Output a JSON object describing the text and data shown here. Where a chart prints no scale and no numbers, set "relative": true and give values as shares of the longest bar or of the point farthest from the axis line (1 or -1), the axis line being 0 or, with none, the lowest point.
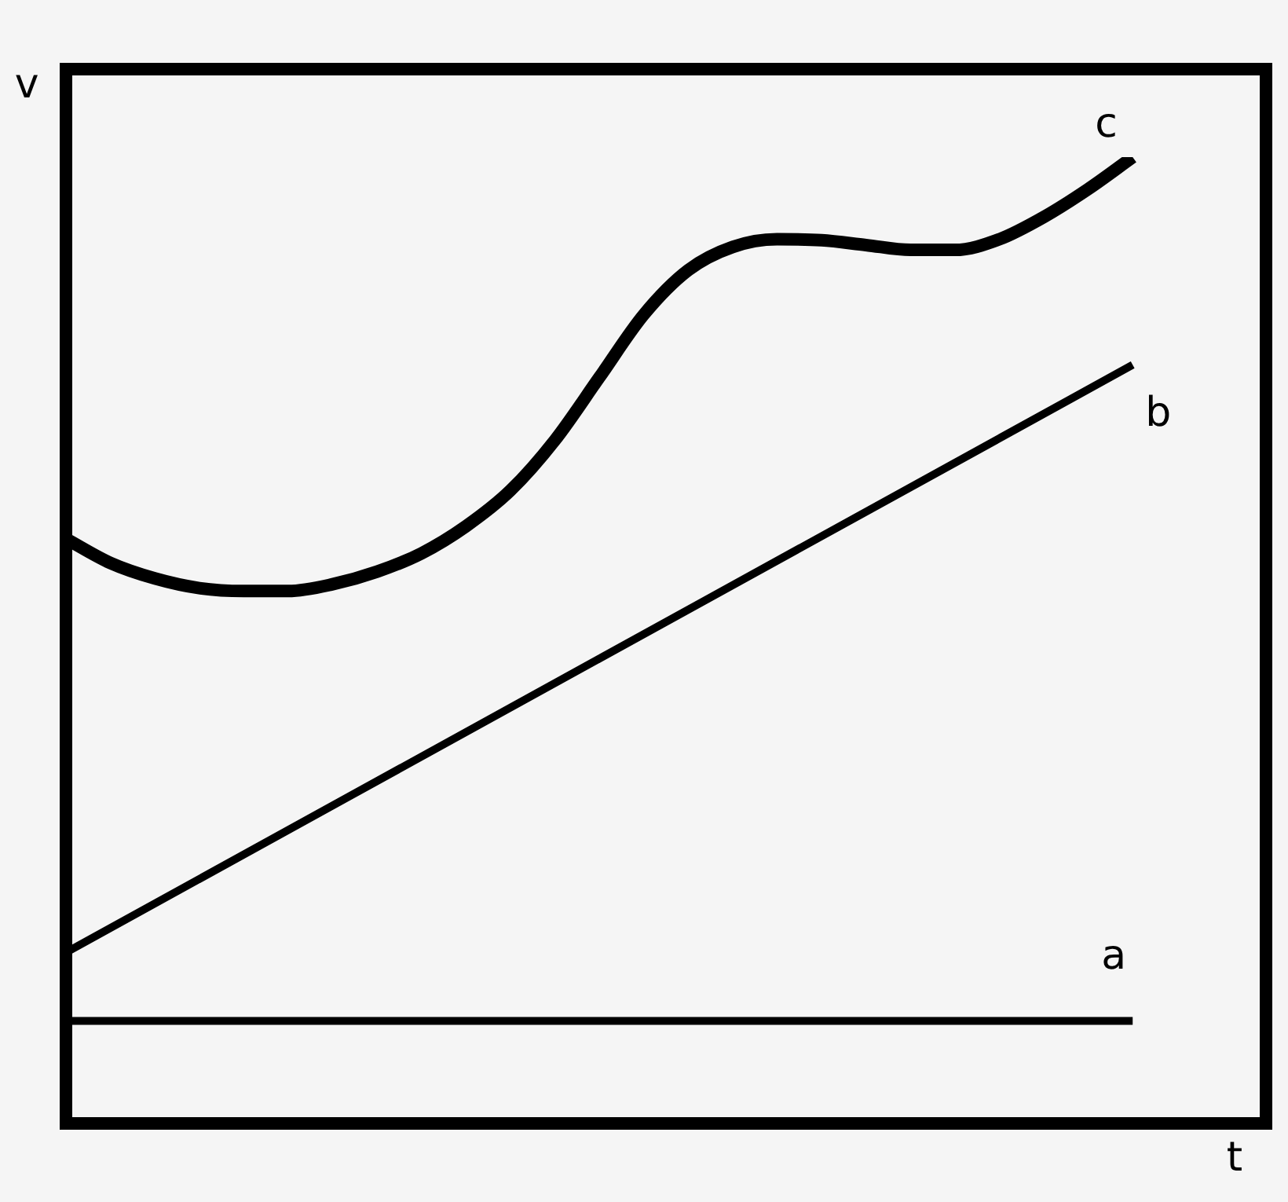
{
  "chart_data": {
    "type": "line",
    "relative": true,
    "xlabel": "t",
    "ylabel": "v",
    "legend": false,
    "marker": "none",
    "line_style": "solid",
    "categories": [
      null,
      null,
      null,
      null,
      null,
      null,
      null,
      null,
      null,
      null,
      null,
      null,
      null,
      null,
      null,
      null,
      null,
      null,
      null,
      null,
      null,
      null,
      null,
      null,
      null,
      null,
      null,
      null
    ],
    "series": [
      {
        "name": "a",
        "color": "#000000",
        "values": [
          0.106,
          null,
          null,
          null,
          null,
          null,
          null,
          null,
          null,
          null,
          null,
          null,
          null,
          null,
          null,
          null,
          null,
          null,
          null,
          null,
          null,
          null,
          null,
          null,
          0.106,
          null,
          null,
          null
        ]
      },
      {
        "name": "b",
        "color": "#000000",
        "values": [
          0.177,
          null,
          null,
          null,
          null,
          null,
          null,
          null,
          null,
          null,
          null,
          null,
          null,
          null,
          null,
          null,
          null,
          null,
          null,
          null,
          null,
          null,
          null,
          null,
          0.785,
          null,
          null,
          null
        ]
      },
      {
        "name": "c",
        "color": "#000000",
        "values": [
          0.605,
          0.58,
          0.564,
          0.554,
          0.551,
          0.551,
          0.558,
          0.571,
          0.59,
          0.618,
          0.655,
          0.707,
          0.772,
          0.837,
          0.883,
          0.907,
          0.915,
          0.914,
          0.909,
          0.904,
          0.904,
          0.915,
          0.938,
          0.967,
          1,
          null,
          null,
          null
        ]
      }
    ]
  }
}
